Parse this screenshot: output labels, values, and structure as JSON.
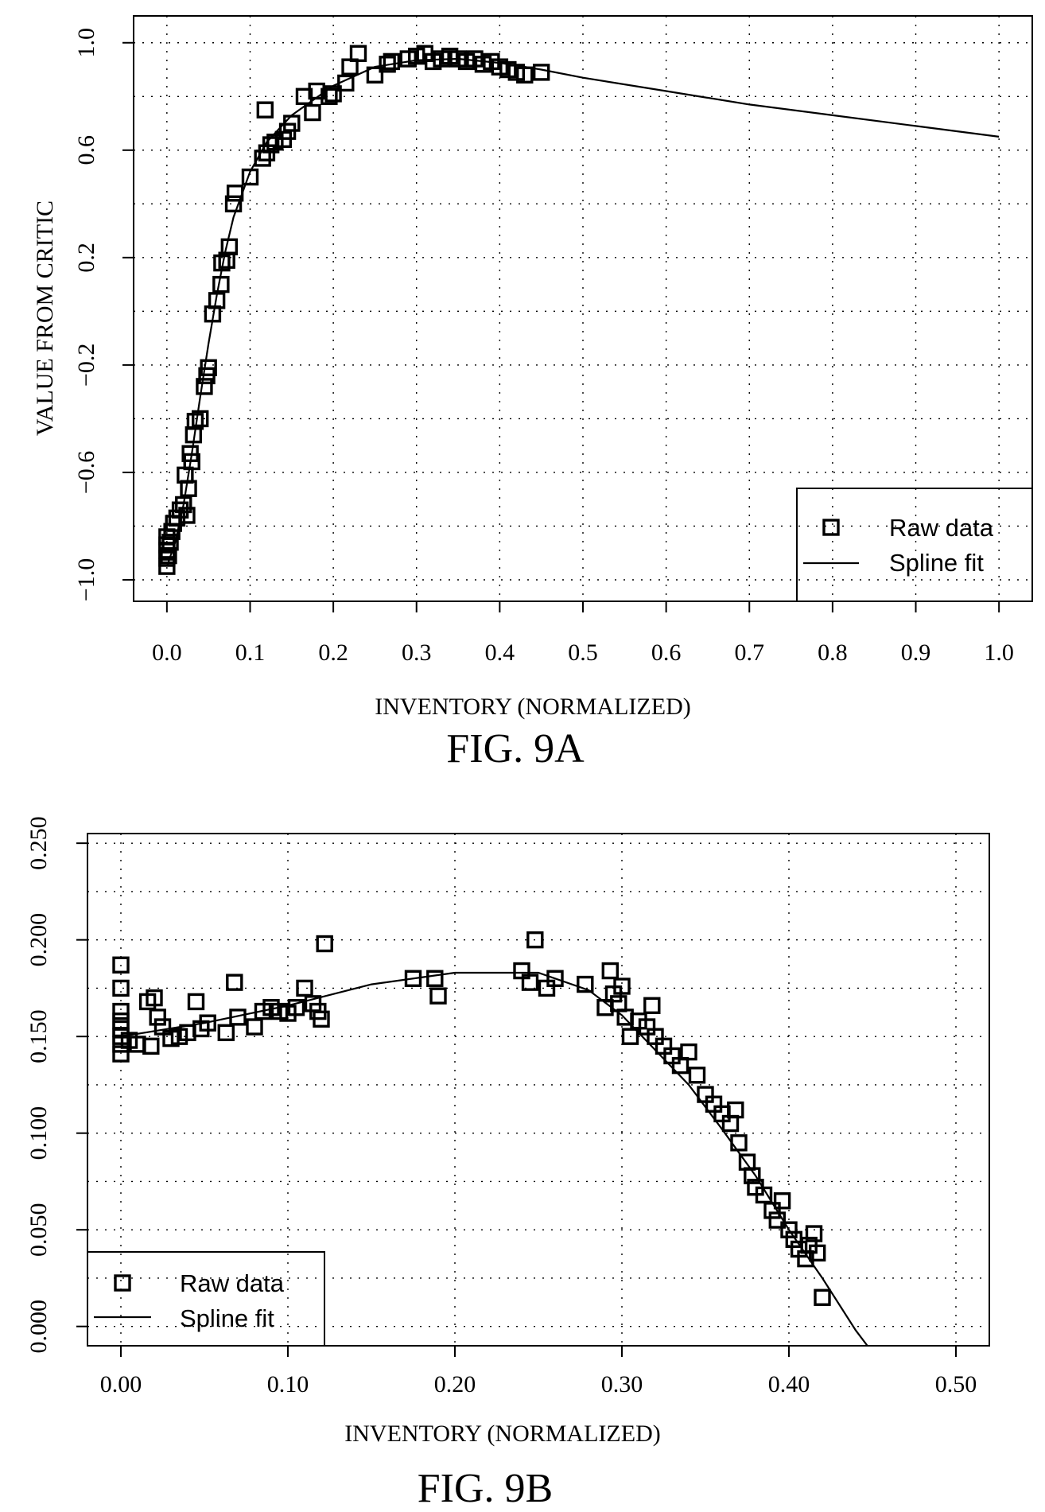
{
  "chart_data": [
    {
      "id": "fig9a",
      "type": "scatter",
      "caption": "FIG. 9A",
      "xlabel": "INVENTORY (NORMALIZED)",
      "ylabel": "VALUE FROM CRITIC",
      "xlim": [
        -0.04,
        1.04
      ],
      "ylim": [
        -1.08,
        1.1
      ],
      "x_ticks": [
        0.0,
        0.1,
        0.2,
        0.3,
        0.4,
        0.5,
        0.6,
        0.7,
        0.8,
        0.9,
        1.0
      ],
      "x_tick_labels": [
        "0.0",
        "0.1",
        "0.2",
        "0.3",
        "0.4",
        "0.5",
        "0.6",
        "0.7",
        "0.8",
        "0.9",
        "1.0"
      ],
      "y_ticks": [
        -1.0,
        -0.6,
        -0.2,
        0.2,
        0.6,
        1.0
      ],
      "y_tick_labels": [
        "−1.0",
        "−0.6",
        "−0.2",
        "0.2",
        "0.6",
        "1.0"
      ],
      "grid": true,
      "legend": {
        "position": "bottom-right",
        "entries": [
          "Raw data",
          "Spline fit"
        ]
      },
      "series": [
        {
          "name": "Raw data",
          "style": "square-marker",
          "points": [
            [
              0.0,
              -0.92
            ],
            [
              0.0,
              -0.95
            ],
            [
              0.0,
              -0.89
            ],
            [
              0.0,
              -0.87
            ],
            [
              0.0,
              -0.84
            ],
            [
              0.002,
              -0.91
            ],
            [
              0.004,
              -0.86
            ],
            [
              0.006,
              -0.82
            ],
            [
              0.008,
              -0.79
            ],
            [
              0.012,
              -0.77
            ],
            [
              0.016,
              -0.74
            ],
            [
              0.02,
              -0.72
            ],
            [
              0.024,
              -0.76
            ],
            [
              0.026,
              -0.66
            ],
            [
              0.022,
              -0.61
            ],
            [
              0.03,
              -0.56
            ],
            [
              0.028,
              -0.53
            ],
            [
              0.032,
              -0.46
            ],
            [
              0.034,
              -0.41
            ],
            [
              0.04,
              -0.4
            ],
            [
              0.045,
              -0.28
            ],
            [
              0.048,
              -0.24
            ],
            [
              0.05,
              -0.21
            ],
            [
              0.055,
              -0.01
            ],
            [
              0.06,
              0.04
            ],
            [
              0.065,
              0.1
            ],
            [
              0.066,
              0.18
            ],
            [
              0.072,
              0.19
            ],
            [
              0.075,
              0.24
            ],
            [
              0.08,
              0.4
            ],
            [
              0.082,
              0.44
            ],
            [
              0.1,
              0.5
            ],
            [
              0.115,
              0.57
            ],
            [
              0.118,
              0.75
            ],
            [
              0.12,
              0.59
            ],
            [
              0.125,
              0.62
            ],
            [
              0.13,
              0.63
            ],
            [
              0.14,
              0.64
            ],
            [
              0.145,
              0.67
            ],
            [
              0.15,
              0.7
            ],
            [
              0.165,
              0.8
            ],
            [
              0.175,
              0.74
            ],
            [
              0.18,
              0.82
            ],
            [
              0.195,
              0.8
            ],
            [
              0.2,
              0.81
            ],
            [
              0.215,
              0.85
            ],
            [
              0.22,
              0.91
            ],
            [
              0.23,
              0.96
            ],
            [
              0.25,
              0.88
            ],
            [
              0.265,
              0.92
            ],
            [
              0.27,
              0.93
            ],
            [
              0.29,
              0.94
            ],
            [
              0.3,
              0.95
            ],
            [
              0.31,
              0.96
            ],
            [
              0.32,
              0.93
            ],
            [
              0.33,
              0.94
            ],
            [
              0.34,
              0.95
            ],
            [
              0.35,
              0.94
            ],
            [
              0.36,
              0.93
            ],
            [
              0.37,
              0.94
            ],
            [
              0.38,
              0.92
            ],
            [
              0.39,
              0.93
            ],
            [
              0.4,
              0.91
            ],
            [
              0.41,
              0.9
            ],
            [
              0.42,
              0.89
            ],
            [
              0.43,
              0.88
            ],
            [
              0.45,
              0.89
            ]
          ]
        },
        {
          "name": "Spline fit",
          "style": "line",
          "points": [
            [
              0.0,
              -0.95
            ],
            [
              0.01,
              -0.86
            ],
            [
              0.02,
              -0.72
            ],
            [
              0.03,
              -0.53
            ],
            [
              0.04,
              -0.32
            ],
            [
              0.05,
              -0.12
            ],
            [
              0.06,
              0.06
            ],
            [
              0.07,
              0.22
            ],
            [
              0.08,
              0.35
            ],
            [
              0.1,
              0.52
            ],
            [
              0.12,
              0.63
            ],
            [
              0.15,
              0.73
            ],
            [
              0.2,
              0.84
            ],
            [
              0.25,
              0.91
            ],
            [
              0.3,
              0.935
            ],
            [
              0.35,
              0.94
            ],
            [
              0.4,
              0.925
            ],
            [
              0.45,
              0.9
            ],
            [
              0.5,
              0.87
            ],
            [
              0.6,
              0.82
            ],
            [
              0.7,
              0.77
            ],
            [
              0.8,
              0.73
            ],
            [
              0.9,
              0.69
            ],
            [
              1.0,
              0.65
            ]
          ]
        }
      ]
    },
    {
      "id": "fig9b",
      "type": "scatter",
      "caption": "FIG. 9B",
      "xlabel": "INVENTORY (NORMALIZED)",
      "ylabel": "",
      "xlim": [
        -0.02,
        0.52
      ],
      "ylim": [
        -0.01,
        0.255
      ],
      "x_ticks": [
        0.0,
        0.1,
        0.2,
        0.3,
        0.4,
        0.5
      ],
      "x_tick_labels": [
        "0.00",
        "0.10",
        "0.20",
        "0.30",
        "0.40",
        "0.50"
      ],
      "y_ticks": [
        0.0,
        0.05,
        0.1,
        0.15,
        0.2,
        0.25
      ],
      "y_tick_labels": [
        "0.000",
        "0.050",
        "0.100",
        "0.150",
        "0.200",
        "0.250"
      ],
      "grid": true,
      "legend": {
        "position": "bottom-left",
        "entries": [
          "Raw data",
          "Spline fit"
        ]
      },
      "series": [
        {
          "name": "Raw data",
          "style": "square-marker",
          "points": [
            [
              0.0,
              0.187
            ],
            [
              0.0,
              0.175
            ],
            [
              0.0,
              0.163
            ],
            [
              0.0,
              0.158
            ],
            [
              0.0,
              0.154
            ],
            [
              0.0,
              0.15
            ],
            [
              0.0,
              0.146
            ],
            [
              0.0,
              0.141
            ],
            [
              0.005,
              0.148
            ],
            [
              0.01,
              0.146
            ],
            [
              0.016,
              0.168
            ],
            [
              0.018,
              0.145
            ],
            [
              0.02,
              0.17
            ],
            [
              0.022,
              0.16
            ],
            [
              0.025,
              0.155
            ],
            [
              0.03,
              0.149
            ],
            [
              0.035,
              0.15
            ],
            [
              0.04,
              0.152
            ],
            [
              0.045,
              0.168
            ],
            [
              0.048,
              0.154
            ],
            [
              0.052,
              0.157
            ],
            [
              0.063,
              0.152
            ],
            [
              0.068,
              0.178
            ],
            [
              0.07,
              0.16
            ],
            [
              0.08,
              0.155
            ],
            [
              0.085,
              0.163
            ],
            [
              0.09,
              0.165
            ],
            [
              0.095,
              0.163
            ],
            [
              0.1,
              0.162
            ],
            [
              0.105,
              0.165
            ],
            [
              0.11,
              0.175
            ],
            [
              0.115,
              0.167
            ],
            [
              0.118,
              0.163
            ],
            [
              0.12,
              0.159
            ],
            [
              0.122,
              0.198
            ],
            [
              0.175,
              0.18
            ],
            [
              0.188,
              0.18
            ],
            [
              0.19,
              0.171
            ],
            [
              0.24,
              0.184
            ],
            [
              0.245,
              0.178
            ],
            [
              0.248,
              0.2
            ],
            [
              0.255,
              0.175
            ],
            [
              0.26,
              0.18
            ],
            [
              0.278,
              0.177
            ],
            [
              0.29,
              0.165
            ],
            [
              0.293,
              0.184
            ],
            [
              0.295,
              0.172
            ],
            [
              0.298,
              0.167
            ],
            [
              0.3,
              0.176
            ],
            [
              0.302,
              0.16
            ],
            [
              0.305,
              0.15
            ],
            [
              0.31,
              0.158
            ],
            [
              0.315,
              0.155
            ],
            [
              0.318,
              0.166
            ],
            [
              0.32,
              0.15
            ],
            [
              0.325,
              0.145
            ],
            [
              0.33,
              0.14
            ],
            [
              0.335,
              0.135
            ],
            [
              0.34,
              0.142
            ],
            [
              0.345,
              0.13
            ],
            [
              0.35,
              0.12
            ],
            [
              0.355,
              0.115
            ],
            [
              0.36,
              0.11
            ],
            [
              0.365,
              0.105
            ],
            [
              0.368,
              0.112
            ],
            [
              0.37,
              0.095
            ],
            [
              0.375,
              0.085
            ],
            [
              0.378,
              0.078
            ],
            [
              0.38,
              0.072
            ],
            [
              0.385,
              0.068
            ],
            [
              0.39,
              0.06
            ],
            [
              0.393,
              0.055
            ],
            [
              0.396,
              0.065
            ],
            [
              0.4,
              0.05
            ],
            [
              0.403,
              0.045
            ],
            [
              0.406,
              0.04
            ],
            [
              0.41,
              0.035
            ],
            [
              0.412,
              0.042
            ],
            [
              0.415,
              0.048
            ],
            [
              0.417,
              0.038
            ],
            [
              0.42,
              0.015
            ]
          ]
        },
        {
          "name": "Spline fit",
          "style": "line",
          "points": [
            [
              0.0,
              0.15
            ],
            [
              0.05,
              0.157
            ],
            [
              0.1,
              0.166
            ],
            [
              0.15,
              0.177
            ],
            [
              0.2,
              0.183
            ],
            [
              0.25,
              0.183
            ],
            [
              0.28,
              0.174
            ],
            [
              0.3,
              0.161
            ],
            [
              0.32,
              0.143
            ],
            [
              0.34,
              0.125
            ],
            [
              0.36,
              0.102
            ],
            [
              0.38,
              0.078
            ],
            [
              0.4,
              0.05
            ],
            [
              0.42,
              0.025
            ],
            [
              0.44,
              -0.002
            ],
            [
              0.447,
              -0.01
            ]
          ]
        }
      ]
    }
  ]
}
